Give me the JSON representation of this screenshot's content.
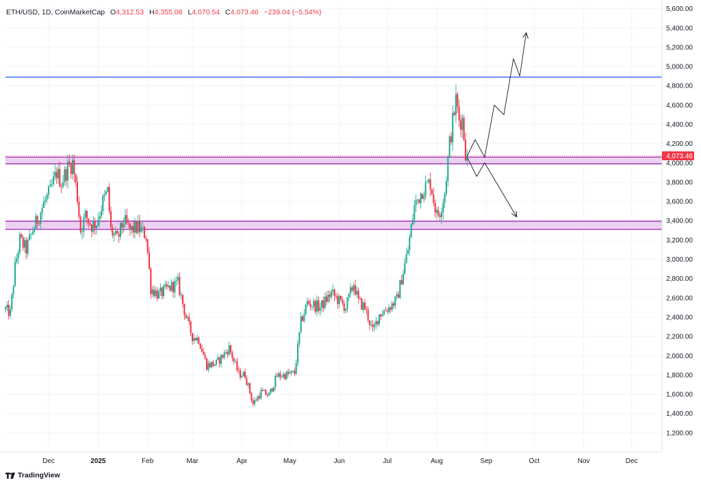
{
  "legend": {
    "symbol": "ETH/USD, 1D, CoinMarketCap",
    "open_label": "O",
    "open": "4,312.53",
    "high_label": "H",
    "high": "4,355.08",
    "low_label": "L",
    "low": "4,070.54",
    "close_label": "C",
    "close": "4,073.46",
    "change": "−239.04 (−5.54%)"
  },
  "footer": {
    "brand": "TradingView"
  },
  "colors": {
    "up": "#22ab94",
    "down": "#f23645",
    "resistance_line": "#2962ff",
    "zone_fill": "#e9c9f0",
    "zone_border": "#9c27b0",
    "grid": "#f0f3fa",
    "arrow": "#131722"
  },
  "chart_data": {
    "type": "candlestick",
    "title": "ETH/USD, 1D, CoinMarketCap",
    "y_axis": {
      "ticks": [
        1200,
        1400,
        1600,
        1800,
        2000,
        2200,
        2400,
        2600,
        2800,
        3000,
        3200,
        3400,
        3600,
        3800,
        4000,
        4200,
        4400,
        4600,
        4800,
        5000,
        5200,
        5400,
        5600
      ],
      "tick_labels": [
        "1,200.00",
        "1,400.00",
        "1,600.00",
        "1,800.00",
        "2,000.00",
        "2,200.00",
        "2,400.00",
        "2,600.00",
        "2,800.00",
        "3,000.00",
        "3,200.00",
        "3,400.00",
        "3,600.00",
        "3,800.00",
        "4,000.00",
        "4,200.00",
        "4,400.00",
        "4,600.00",
        "4,800.00",
        "5,000.00",
        "5,200.00",
        "5,400.00",
        "5,600.00"
      ],
      "range": [
        1000,
        5640
      ]
    },
    "x_axis": {
      "labels": [
        "Dec",
        "2025",
        "Feb",
        "Mar",
        "Apr",
        "May",
        "Jun",
        "Jul",
        "Aug",
        "Sep",
        "Oct",
        "Nov",
        "Dec"
      ],
      "label_dates": [
        "2024-12-01",
        "2025-01-01",
        "2025-02-01",
        "2025-03-01",
        "2025-04-01",
        "2025-05-01",
        "2025-06-01",
        "2025-07-01",
        "2025-08-01",
        "2025-09-01",
        "2025-10-01",
        "2025-11-01",
        "2025-12-01"
      ],
      "range": [
        "2024-11-04",
        "2025-12-20"
      ]
    },
    "current_price": {
      "value": 4073.46,
      "label": "4,073.46"
    },
    "resistance_line": 4890,
    "zones": [
      {
        "top": 4060,
        "bottom": 3990
      },
      {
        "top": 3395,
        "bottom": 3310
      }
    ],
    "projection_paths": [
      {
        "points": [
          [
            "2025-08-20",
            4070
          ],
          [
            "2025-08-25",
            4240
          ],
          [
            "2025-08-31",
            4060
          ],
          [
            "2025-09-06",
            4600
          ],
          [
            "2025-09-12",
            4500
          ],
          [
            "2025-09-18",
            5080
          ],
          [
            "2025-09-22",
            4900
          ],
          [
            "2025-09-26",
            5350
          ]
        ],
        "arrow": true
      },
      {
        "points": [
          [
            "2025-08-20",
            4060
          ],
          [
            "2025-08-26",
            3860
          ],
          [
            "2025-08-31",
            4000
          ],
          [
            "2025-09-20",
            3440
          ]
        ],
        "arrow": true
      }
    ],
    "anchors": [
      [
        "2024-11-04",
        2480
      ],
      [
        "2024-11-07",
        2440
      ],
      [
        "2024-11-10",
        2920
      ],
      [
        "2024-11-13",
        3200
      ],
      [
        "2024-11-17",
        3100
      ],
      [
        "2024-11-21",
        3300
      ],
      [
        "2024-11-25",
        3450
      ],
      [
        "2024-11-28",
        3580
      ],
      [
        "2024-12-02",
        3700
      ],
      [
        "2024-12-06",
        3900
      ],
      [
        "2024-12-09",
        3800
      ],
      [
        "2024-12-13",
        3950
      ],
      [
        "2024-12-16",
        4000
      ],
      [
        "2024-12-19",
        3650
      ],
      [
        "2024-12-21",
        3300
      ],
      [
        "2024-12-24",
        3450
      ],
      [
        "2024-12-28",
        3350
      ],
      [
        "2024-12-31",
        3380
      ],
      [
        "2025-01-04",
        3600
      ],
      [
        "2025-01-07",
        3700
      ],
      [
        "2025-01-09",
        3300
      ],
      [
        "2025-01-13",
        3200
      ],
      [
        "2025-01-17",
        3400
      ],
      [
        "2025-01-21",
        3300
      ],
      [
        "2025-01-26",
        3330
      ],
      [
        "2025-01-31",
        3250
      ],
      [
        "2025-02-03",
        2700
      ],
      [
        "2025-02-08",
        2630
      ],
      [
        "2025-02-14",
        2700
      ],
      [
        "2025-02-20",
        2750
      ],
      [
        "2025-02-25",
        2400
      ],
      [
        "2025-03-01",
        2200
      ],
      [
        "2025-03-05",
        2170
      ],
      [
        "2025-03-10",
        1900
      ],
      [
        "2025-03-16",
        1920
      ],
      [
        "2025-03-24",
        2080
      ],
      [
        "2025-03-30",
        1810
      ],
      [
        "2025-04-03",
        1800
      ],
      [
        "2025-04-08",
        1500
      ],
      [
        "2025-04-13",
        1620
      ],
      [
        "2025-04-18",
        1590
      ],
      [
        "2025-04-23",
        1790
      ],
      [
        "2025-04-28",
        1800
      ],
      [
        "2025-05-04",
        1820
      ],
      [
        "2025-05-08",
        2350
      ],
      [
        "2025-05-12",
        2550
      ],
      [
        "2025-05-20",
        2500
      ],
      [
        "2025-05-27",
        2650
      ],
      [
        "2025-06-05",
        2500
      ],
      [
        "2025-06-10",
        2750
      ],
      [
        "2025-06-13",
        2560
      ],
      [
        "2025-06-17",
        2500
      ],
      [
        "2025-06-22",
        2250
      ],
      [
        "2025-06-26",
        2430
      ],
      [
        "2025-07-02",
        2500
      ],
      [
        "2025-07-07",
        2580
      ],
      [
        "2025-07-10",
        2800
      ],
      [
        "2025-07-14",
        3100
      ],
      [
        "2025-07-18",
        3550
      ],
      [
        "2025-07-23",
        3720
      ],
      [
        "2025-07-28",
        3800
      ],
      [
        "2025-08-01",
        3450
      ],
      [
        "2025-08-03",
        3500
      ],
      [
        "2025-08-06",
        3700
      ],
      [
        "2025-08-09",
        4200
      ],
      [
        "2025-08-13",
        4650
      ],
      [
        "2025-08-15",
        4450
      ],
      [
        "2025-08-17",
        4450
      ],
      [
        "2025-08-19",
        4120
      ],
      [
        "2025-08-20",
        4073.46
      ]
    ]
  }
}
